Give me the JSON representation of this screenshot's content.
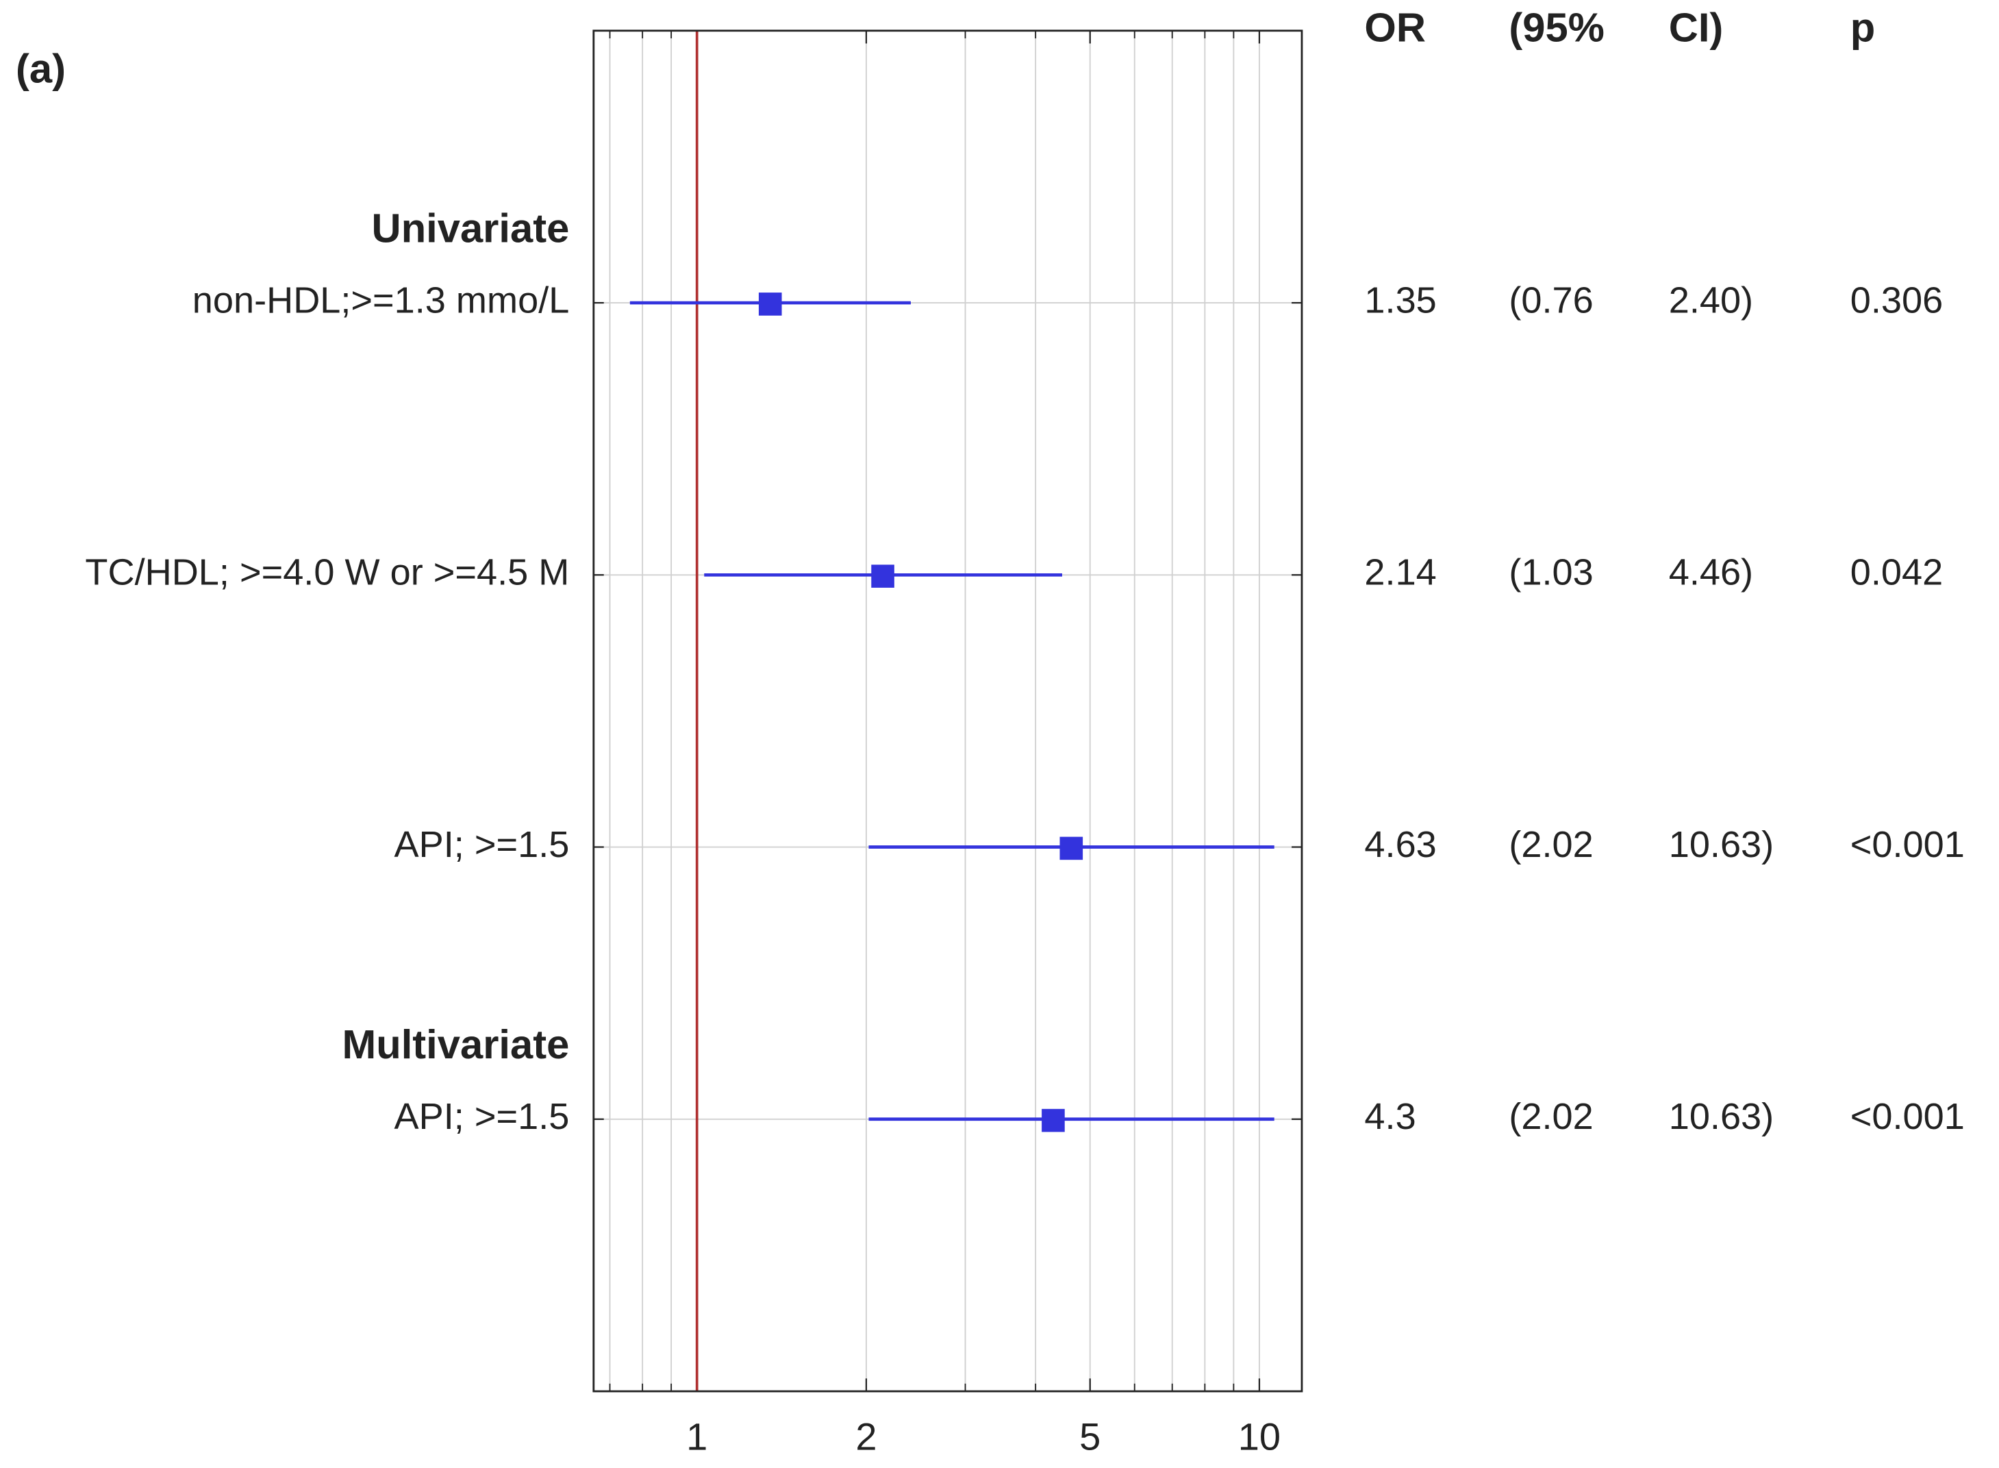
{
  "chart_data": {
    "type": "forest",
    "panel_label": "(a)",
    "columns": [
      "OR",
      "(95%",
      "CI)",
      "p"
    ],
    "categories": [
      "non-HDL;>=1.3 mmo/L",
      "TC/HDL; >=4.0 W or >=4.5 M",
      "API; >=1.5",
      "API; >=1.5"
    ],
    "groups": [
      {
        "name": "Univariate",
        "rows": [
          0,
          1,
          2
        ]
      },
      {
        "name": "Multivariate",
        "rows": [
          3
        ]
      }
    ],
    "values": [
      1.35,
      2.14,
      4.63,
      4.3
    ],
    "lower": [
      0.76,
      1.03,
      2.02,
      2.02
    ],
    "lower_labels": [
      "(0.76",
      "(1.03",
      "(2.02",
      "(2.02"
    ],
    "upper": [
      2.4,
      4.46,
      10.63,
      10.63
    ],
    "upper_labels": [
      "2.40)",
      "4.46)",
      "10.63)",
      "10.63)"
    ],
    "p": [
      0.306,
      0.042,
      0.001,
      0.001
    ],
    "p_labels": [
      "0.306",
      "0.042",
      "<0.001",
      "<0.001"
    ],
    "color": "#3333dd",
    "reference_line": 1,
    "reference_color": "#b03030",
    "xscale": "log",
    "xlim": [
      0.655,
      11.9
    ],
    "xticks": [
      1,
      2,
      5,
      10
    ],
    "minor_xticks": [
      0.7,
      0.8,
      0.9,
      3,
      4,
      6,
      7,
      8,
      9
    ],
    "grid": true
  }
}
